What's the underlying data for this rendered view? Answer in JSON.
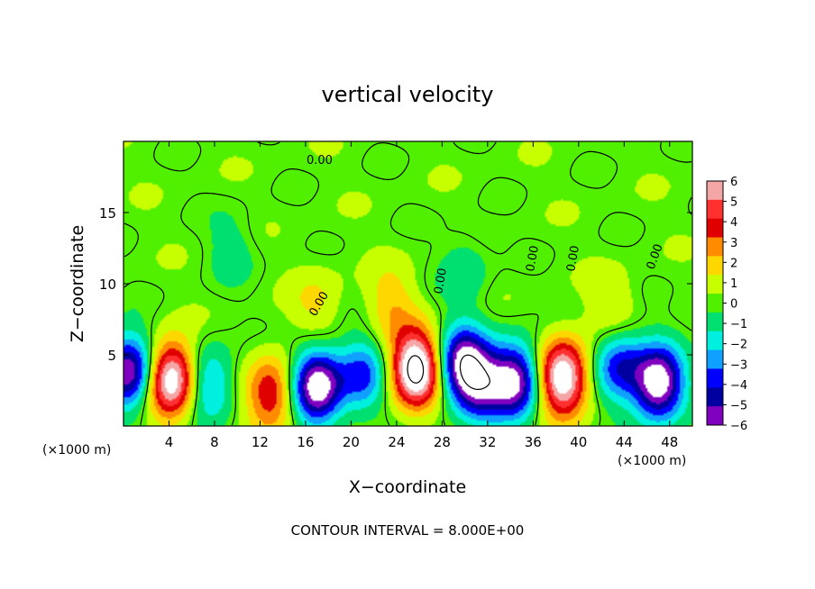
{
  "chart_data": {
    "type": "heatmap",
    "title": "vertical velocity",
    "xlabel": "X−coordinate",
    "ylabel": "Z−coordinate",
    "x_unit": "(×1000 m)",
    "z_unit": "(×1000 m)",
    "xlim": [
      0,
      50
    ],
    "ylim": [
      0,
      20
    ],
    "x_ticks": [
      4,
      8,
      12,
      16,
      20,
      24,
      28,
      32,
      36,
      40,
      44,
      48
    ],
    "y_ticks": [
      5,
      10,
      15
    ],
    "footer": "CONTOUR INTERVAL = 8.000E+00",
    "contour_labels": [
      "0.00",
      "0.00",
      "0.00",
      "0.00",
      "0.00",
      "0.00"
    ],
    "colorbar": {
      "ticks": [
        "6",
        "5",
        "4",
        "3",
        "2",
        "1",
        "0",
        "−1",
        "−2",
        "−3",
        "−4",
        "−5",
        "−6"
      ],
      "min": -6,
      "max": 6,
      "colors": [
        "#f4a6a6",
        "#ff3030",
        "#e00000",
        "#ff8c00",
        "#ffd700",
        "#c8ff00",
        "#50f000",
        "#00e070",
        "#00f0e0",
        "#10a0ff",
        "#0000ff",
        "#0000a0",
        "#8000c0"
      ]
    },
    "updrafts": [
      {
        "x": 4.2,
        "z": 3.3,
        "peak": 8
      },
      {
        "x": 13.0,
        "z": 2.3,
        "peak": 4.5
      },
      {
        "x": 25.7,
        "z": 4.0,
        "peak": 9
      },
      {
        "x": 38.6,
        "z": 3.4,
        "peak": 8
      },
      {
        "x": 23.5,
        "z": 8.5,
        "peak": 2
      },
      {
        "x": 17.0,
        "z": 8.5,
        "peak": 1.5
      },
      {
        "x": 43.0,
        "z": 8.0,
        "peak": 1.5
      }
    ],
    "downdrafts": [
      {
        "x": 0.5,
        "z": 3.8,
        "peak": -7
      },
      {
        "x": 17.0,
        "z": 2.8,
        "peak": -8
      },
      {
        "x": 29.8,
        "z": 4.3,
        "peak": -7
      },
      {
        "x": 34.5,
        "z": 3.2,
        "peak": -7
      },
      {
        "x": 47.0,
        "z": 3.0,
        "peak": -8
      },
      {
        "x": 7.5,
        "z": 3.0,
        "peak": -3.5
      },
      {
        "x": 21.0,
        "z": 3.5,
        "peak": -4
      },
      {
        "x": 43.5,
        "z": 4.3,
        "peak": -4.5
      },
      {
        "x": 31.5,
        "z": 2.8,
        "peak": -4.5
      },
      {
        "x": 9.5,
        "z": 12.5,
        "peak": -1.2
      },
      {
        "x": 30.0,
        "z": 11.0,
        "peak": -1.5
      }
    ]
  }
}
